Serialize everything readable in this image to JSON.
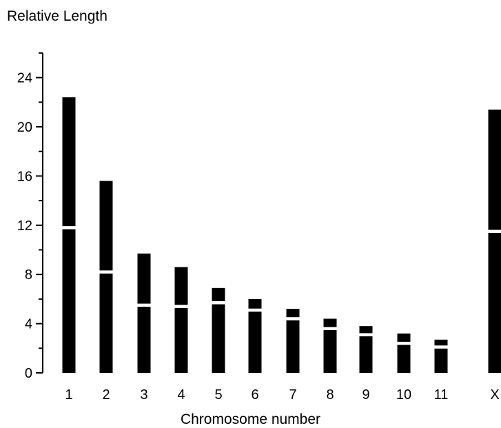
{
  "chart_data": {
    "type": "bar",
    "title": "",
    "ylabel": "Relative Length",
    "xlabel": "Chromosome number",
    "ylim": [
      0,
      26
    ],
    "yticks_major": [
      0,
      4,
      8,
      12,
      16,
      20,
      24
    ],
    "yticks_minor": [
      2,
      6,
      10,
      14,
      18,
      22,
      26
    ],
    "categories": [
      "1",
      "2",
      "3",
      "4",
      "5",
      "6",
      "7",
      "8",
      "9",
      "10",
      "11",
      "X"
    ],
    "values": [
      22.4,
      15.6,
      9.7,
      8.6,
      6.9,
      6.0,
      5.2,
      4.4,
      3.8,
      3.2,
      2.7,
      21.4
    ],
    "centromere": [
      11.8,
      8.2,
      5.5,
      5.4,
      5.7,
      5.1,
      4.4,
      3.6,
      3.1,
      2.4,
      2.1,
      11.5
    ],
    "bar_color": "#000000",
    "centromere_color": "#ffffff",
    "grid": false,
    "legend": "none"
  }
}
